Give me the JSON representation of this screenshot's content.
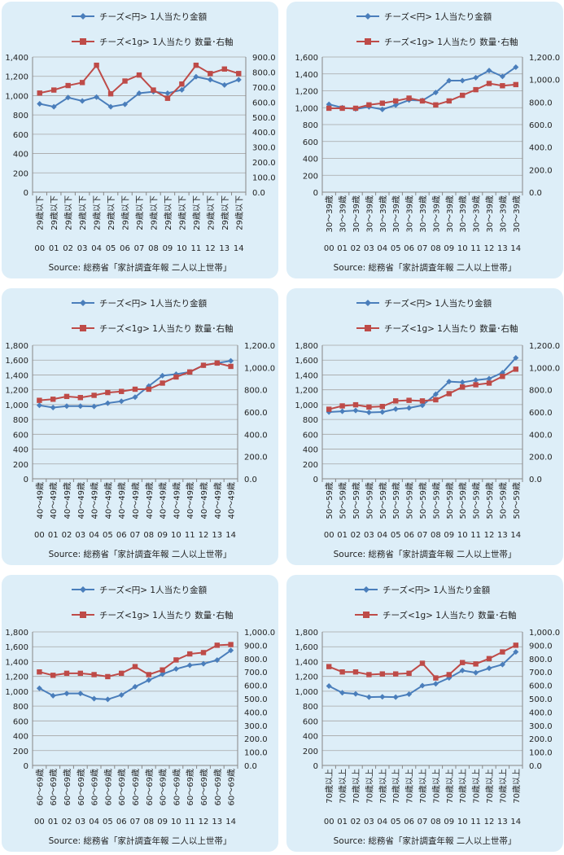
{
  "colors": {
    "panel_bg": "#ddeef8",
    "series1": "#4a7ebb",
    "series2": "#be4b48",
    "grid": "#a6a6a6"
  },
  "years": [
    "00",
    "01",
    "02",
    "03",
    "04",
    "05",
    "06",
    "07",
    "08",
    "09",
    "10",
    "11",
    "12",
    "13",
    "14"
  ],
  "source": "Source: 総務省「家計調査年報 二人以上世帯」",
  "legend": [
    "チーズ<円> 1人当たり金額",
    "チーズ<1g> 1人当たり 数量･右軸"
  ],
  "chart_data": [
    {
      "type": "line",
      "age_label": "29歳以下",
      "ylim_left": [
        0,
        1400
      ],
      "left_ticks": [
        "0",
        "200",
        "400",
        "600",
        "800",
        "1,000",
        "1,200",
        "1,400"
      ],
      "ylim_right": [
        0,
        900
      ],
      "right_ticks": [
        "0.0",
        "100.0",
        "200.0",
        "300.0",
        "400.0",
        "500.0",
        "600.0",
        "700.0",
        "800.0",
        "900.0"
      ],
      "series": [
        {
          "name": "チーズ<円> 1人当たり金額",
          "values": [
            915,
            885,
            980,
            945,
            985,
            885,
            910,
            1025,
            1040,
            1025,
            1060,
            1195,
            1165,
            1110,
            1165
          ]
        },
        {
          "name": "チーズ<1g> 1人当たり 数量･右軸",
          "values": [
            660,
            680,
            710,
            730,
            845,
            655,
            740,
            780,
            680,
            625,
            720,
            845,
            790,
            820,
            790
          ]
        }
      ]
    },
    {
      "type": "line",
      "age_label": "30～39歳",
      "ylim_left": [
        0,
        1600
      ],
      "left_ticks": [
        "0",
        "200",
        "400",
        "600",
        "800",
        "1,000",
        "1,200",
        "1,400",
        "1,600"
      ],
      "ylim_right": [
        0,
        1200
      ],
      "right_ticks": [
        "0.0",
        "200.0",
        "400.0",
        "600.0",
        "800.0",
        "1,000.0",
        "1,200.0"
      ],
      "series": [
        {
          "name": "チーズ<円> 1人当たり金額",
          "values": [
            1040,
            1000,
            985,
            1010,
            980,
            1030,
            1090,
            1085,
            1180,
            1320,
            1320,
            1355,
            1440,
            1370,
            1480
          ]
        },
        {
          "name": "チーズ<1g> 1人当たり 数量･右軸",
          "values": [
            745,
            745,
            745,
            775,
            790,
            810,
            835,
            810,
            775,
            810,
            860,
            910,
            965,
            945,
            955
          ]
        }
      ]
    },
    {
      "type": "line",
      "age_label": "40～49歳",
      "ylim_left": [
        0,
        1800
      ],
      "left_ticks": [
        "0",
        "200",
        "400",
        "600",
        "800",
        "1,000",
        "1,200",
        "1,400",
        "1,600",
        "1,800"
      ],
      "ylim_right": [
        0,
        1200
      ],
      "right_ticks": [
        "0.0",
        "200.0",
        "400.0",
        "600.0",
        "800.0",
        "1,000.0",
        "1,200.0"
      ],
      "series": [
        {
          "name": "チーズ<円> 1人当たり金額",
          "values": [
            990,
            960,
            980,
            980,
            975,
            1020,
            1045,
            1100,
            1250,
            1390,
            1410,
            1440,
            1530,
            1560,
            1590
          ]
        },
        {
          "name": "チーズ<1g> 1人当たり 数量･右軸",
          "values": [
            705,
            715,
            740,
            730,
            750,
            775,
            785,
            805,
            805,
            860,
            915,
            960,
            1020,
            1040,
            1010
          ]
        }
      ]
    },
    {
      "type": "line",
      "age_label": "50～59歳",
      "ylim_left": [
        0,
        1800
      ],
      "left_ticks": [
        "0",
        "200",
        "400",
        "600",
        "800",
        "1,000",
        "1,200",
        "1,400",
        "1,600",
        "1,800"
      ],
      "ylim_right": [
        0,
        1200
      ],
      "right_ticks": [
        "0.0",
        "200.0",
        "400.0",
        "600.0",
        "800.0",
        "1,000.0",
        "1,200.0"
      ],
      "series": [
        {
          "name": "チーズ<円> 1人当たり金額",
          "values": [
            900,
            910,
            920,
            895,
            900,
            940,
            955,
            990,
            1140,
            1310,
            1300,
            1330,
            1350,
            1430,
            1630
          ]
        },
        {
          "name": "チーズ<1g> 1人当たり 数量･右軸",
          "values": [
            625,
            655,
            665,
            645,
            650,
            700,
            705,
            700,
            710,
            765,
            825,
            845,
            860,
            920,
            985
          ]
        }
      ]
    },
    {
      "type": "line",
      "age_label": "60～69歳",
      "ylim_left": [
        0,
        1800
      ],
      "left_ticks": [
        "0",
        "200",
        "400",
        "600",
        "800",
        "1,000",
        "1,200",
        "1,400",
        "1,600",
        "1,800"
      ],
      "ylim_right": [
        0,
        1000
      ],
      "right_ticks": [
        "0.0",
        "100.0",
        "200.0",
        "300.0",
        "400.0",
        "500.0",
        "600.0",
        "700.0",
        "800.0",
        "900.0",
        "1,000.0"
      ],
      "series": [
        {
          "name": "チーズ<円> 1人当たり金額",
          "values": [
            1040,
            940,
            970,
            970,
            900,
            890,
            950,
            1060,
            1150,
            1230,
            1300,
            1350,
            1370,
            1420,
            1550
          ]
        },
        {
          "name": "チーズ<1g> 1人当たり 数量･右軸",
          "values": [
            700,
            675,
            690,
            690,
            680,
            665,
            690,
            740,
            680,
            715,
            790,
            835,
            845,
            900,
            905
          ]
        }
      ]
    },
    {
      "type": "line",
      "age_label": "70歳以上",
      "ylim_left": [
        0,
        1800
      ],
      "left_ticks": [
        "0",
        "200",
        "400",
        "600",
        "800",
        "1,000",
        "1,200",
        "1,400",
        "1,600",
        "1,800"
      ],
      "ylim_right": [
        0,
        1000
      ],
      "right_ticks": [
        "0.0",
        "100.0",
        "200.0",
        "300.0",
        "400.0",
        "500.0",
        "600.0",
        "700.0",
        "800.0",
        "900.0",
        "1,000.0"
      ],
      "series": [
        {
          "name": "チーズ<円> 1人当たり金額",
          "values": [
            1070,
            980,
            965,
            920,
            925,
            920,
            960,
            1075,
            1100,
            1180,
            1280,
            1250,
            1310,
            1360,
            1530
          ]
        },
        {
          "name": "チーズ<1g> 1人当たり 数量･右軸",
          "values": [
            740,
            700,
            700,
            680,
            685,
            685,
            690,
            765,
            655,
            680,
            770,
            760,
            800,
            850,
            900
          ]
        }
      ]
    }
  ]
}
